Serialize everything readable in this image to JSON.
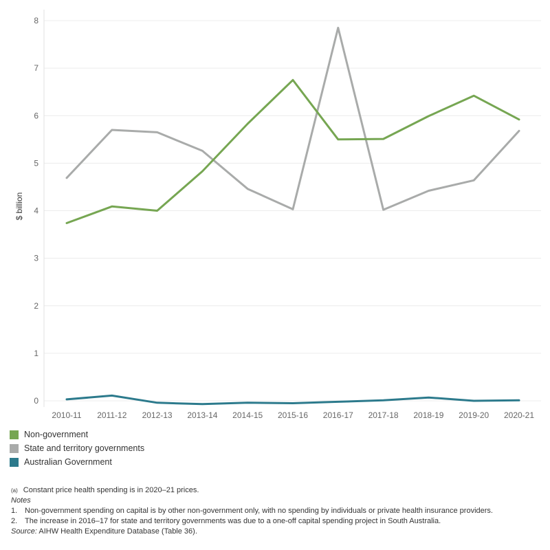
{
  "chart_data": {
    "type": "line",
    "title": "",
    "xlabel": "",
    "ylabel": "$ billion",
    "ylim": [
      0,
      8
    ],
    "yticks": [
      0,
      1,
      2,
      3,
      4,
      5,
      6,
      7,
      8
    ],
    "grid": true,
    "legend_position": "bottom-left",
    "categories": [
      "2010-11",
      "2011-12",
      "2012-13",
      "2013-14",
      "2014-15",
      "2015-16",
      "2016-17",
      "2017-18",
      "2018-19",
      "2019-20",
      "2020-21"
    ],
    "series": [
      {
        "name": "Non-government",
        "color": "#76a652",
        "values": [
          3.74,
          4.09,
          4.0,
          4.83,
          5.83,
          6.75,
          5.5,
          5.51,
          5.99,
          6.42,
          5.92
        ]
      },
      {
        "name": "State and territory governments",
        "color": "#a9abaa",
        "values": [
          4.69,
          5.7,
          5.65,
          5.26,
          4.46,
          4.03,
          7.85,
          4.02,
          4.42,
          4.64,
          5.68
        ]
      },
      {
        "name": "Australian Government",
        "color": "#2c7a8c",
        "values": [
          0.03,
          0.11,
          -0.04,
          -0.07,
          -0.04,
          -0.05,
          -0.02,
          0.01,
          0.07,
          0.0,
          0.01
        ]
      }
    ]
  },
  "notes": {
    "footnote_marker": "(a)",
    "footnote_text": "Constant price health spending is in 2020–21 prices.",
    "heading": "Notes",
    "items": [
      {
        "num": "1.",
        "text": "Non-government spending on capital is by other non-government only, with no spending by individuals or private health insurance providers."
      },
      {
        "num": "2.",
        "text": "The increase in 2016–17 for state and territory governments was due to a one-off capital spending project in South Australia."
      }
    ],
    "source_label": "Source:",
    "source_text": "AIHW Health Expenditure Database (Table 36)."
  }
}
